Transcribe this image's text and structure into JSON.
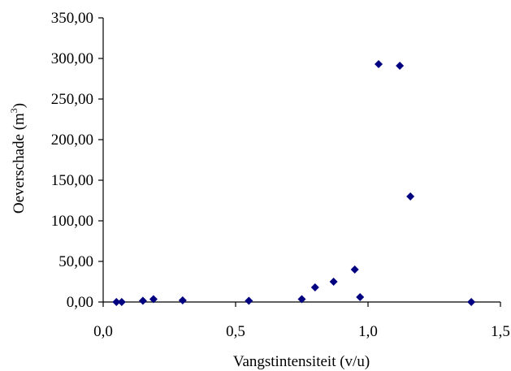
{
  "chart_data": {
    "type": "scatter",
    "xlabel": "Vangstintensiteit (v/u)",
    "ylabel": {
      "text": "Oeverschade (m",
      "superscript": "3",
      "suffix": ")"
    },
    "xlim": [
      0,
      1.5
    ],
    "ylim": [
      0,
      350
    ],
    "x_ticks": [
      0,
      0.5,
      1.0,
      1.5
    ],
    "x_tick_labels": [
      "0,0",
      "0,5",
      "1,0",
      "1,5"
    ],
    "y_ticks": [
      0,
      50,
      100,
      150,
      200,
      250,
      300,
      350
    ],
    "y_tick_labels": [
      "0,00",
      "50,00",
      "100,00",
      "150,00",
      "200,00",
      "250,00",
      "300,00",
      "350,00"
    ],
    "grid": false,
    "legend": "none",
    "marker": "diamond",
    "marker_color": "#000080",
    "points": [
      {
        "x": 0.05,
        "y": 0.0
      },
      {
        "x": 0.07,
        "y": 0.0
      },
      {
        "x": 0.15,
        "y": 1.5
      },
      {
        "x": 0.19,
        "y": 3.5
      },
      {
        "x": 0.3,
        "y": 2.0
      },
      {
        "x": 0.55,
        "y": 1.5
      },
      {
        "x": 0.75,
        "y": 3.5
      },
      {
        "x": 0.8,
        "y": 18.0
      },
      {
        "x": 0.87,
        "y": 25.0
      },
      {
        "x": 0.95,
        "y": 40.0
      },
      {
        "x": 0.97,
        "y": 6.0
      },
      {
        "x": 1.04,
        "y": 293.0
      },
      {
        "x": 1.12,
        "y": 291.0
      },
      {
        "x": 1.16,
        "y": 130.0
      },
      {
        "x": 1.39,
        "y": 0.0
      }
    ]
  }
}
